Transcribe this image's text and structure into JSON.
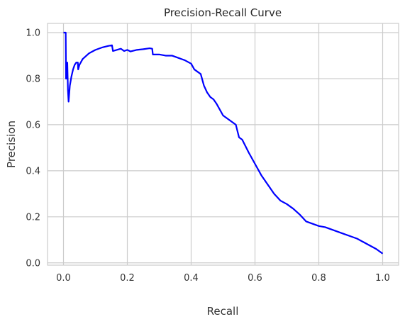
{
  "chart_data": {
    "type": "line",
    "title": "Precision-Recall Curve",
    "xlabel": "Recall",
    "ylabel": "Precision",
    "xlim": [
      -0.05,
      1.05
    ],
    "ylim": [
      -0.01,
      1.04
    ],
    "xticks": [
      0.0,
      0.2,
      0.4,
      0.6,
      0.8,
      1.0
    ],
    "xtick_labels": [
      "0.0",
      "0.2",
      "0.4",
      "0.6",
      "0.8",
      "1.0"
    ],
    "yticks": [
      0.0,
      0.2,
      0.4,
      0.6,
      0.8,
      1.0
    ],
    "ytick_labels": [
      "0.0",
      "0.2",
      "0.4",
      "0.6",
      "0.8",
      "1.0"
    ],
    "grid": true,
    "legend": "none",
    "series": [
      {
        "color": "#0000ff",
        "x": [
          0.0,
          0.007,
          0.008,
          0.009,
          0.011,
          0.012,
          0.014,
          0.016,
          0.02,
          0.025,
          0.03,
          0.035,
          0.04,
          0.045,
          0.046,
          0.05,
          0.06,
          0.08,
          0.1,
          0.12,
          0.14,
          0.152,
          0.155,
          0.18,
          0.19,
          0.2,
          0.21,
          0.23,
          0.25,
          0.27,
          0.278,
          0.28,
          0.3,
          0.32,
          0.34,
          0.36,
          0.38,
          0.4,
          0.41,
          0.42,
          0.43,
          0.44,
          0.45,
          0.46,
          0.47,
          0.48,
          0.5,
          0.52,
          0.54,
          0.55,
          0.56,
          0.58,
          0.6,
          0.62,
          0.64,
          0.66,
          0.68,
          0.7,
          0.72,
          0.74,
          0.76,
          0.78,
          0.8,
          0.82,
          0.84,
          0.86,
          0.88,
          0.9,
          0.92,
          0.94,
          0.96,
          0.98,
          1.0
        ],
        "y": [
          1.0,
          1.0,
          0.8,
          0.87,
          0.8,
          0.87,
          0.75,
          0.7,
          0.77,
          0.81,
          0.84,
          0.86,
          0.87,
          0.87,
          0.84,
          0.86,
          0.885,
          0.91,
          0.925,
          0.935,
          0.942,
          0.945,
          0.92,
          0.93,
          0.92,
          0.925,
          0.918,
          0.925,
          0.928,
          0.932,
          0.93,
          0.905,
          0.905,
          0.9,
          0.9,
          0.89,
          0.88,
          0.865,
          0.84,
          0.83,
          0.82,
          0.77,
          0.74,
          0.72,
          0.71,
          0.69,
          0.64,
          0.62,
          0.6,
          0.545,
          0.535,
          0.48,
          0.43,
          0.38,
          0.34,
          0.3,
          0.27,
          0.255,
          0.235,
          0.21,
          0.18,
          0.17,
          0.16,
          0.155,
          0.145,
          0.135,
          0.125,
          0.115,
          0.105,
          0.09,
          0.075,
          0.06,
          0.04
        ]
      }
    ]
  }
}
